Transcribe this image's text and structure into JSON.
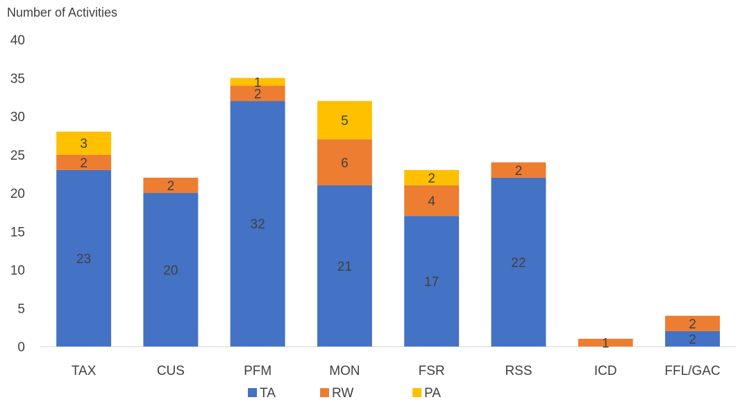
{
  "chart_data": {
    "type": "bar",
    "stacked": true,
    "ylabel": "Number of Activities",
    "xlabel": "",
    "ylim": [
      0,
      40
    ],
    "yticks": [
      0,
      5,
      10,
      15,
      20,
      25,
      30,
      35,
      40
    ],
    "grid": false,
    "legend": "bottom",
    "categories": [
      "TAX",
      "CUS",
      "PFM",
      "MON",
      "FSR",
      "RSS",
      "ICD",
      "FFL/GAC"
    ],
    "series": [
      {
        "name": "TA",
        "color": "#4472C4",
        "values": [
          23,
          20,
          32,
          21,
          17,
          22,
          0,
          2
        ]
      },
      {
        "name": "RW",
        "color": "#ED7D31",
        "values": [
          2,
          2,
          2,
          6,
          4,
          2,
          1,
          2
        ]
      },
      {
        "name": "PA",
        "color": "#FFC000",
        "values": [
          3,
          0,
          1,
          5,
          2,
          0,
          0,
          0
        ]
      }
    ]
  }
}
